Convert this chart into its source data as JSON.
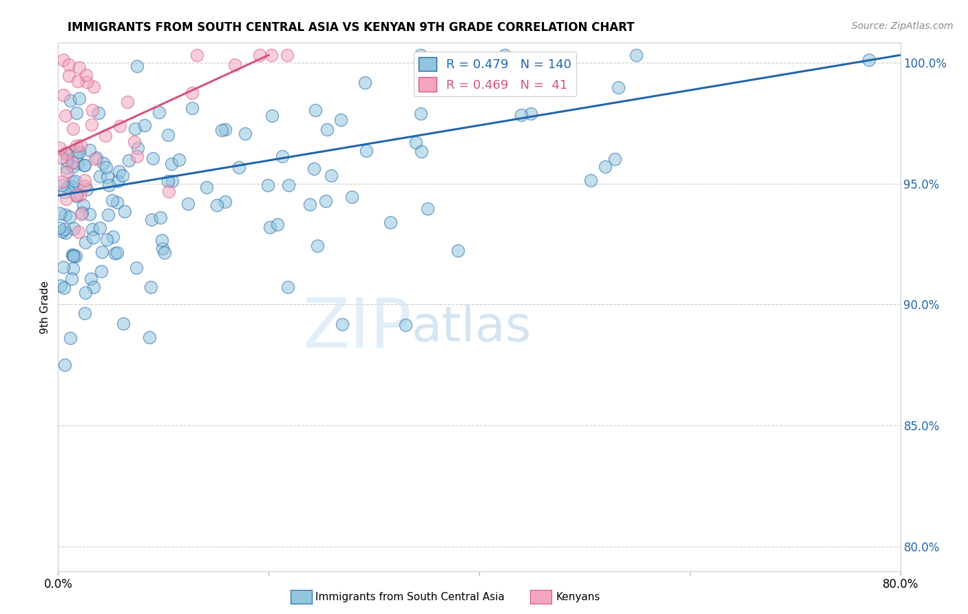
{
  "title": "IMMIGRANTS FROM SOUTH CENTRAL ASIA VS KENYAN 9TH GRADE CORRELATION CHART",
  "source": "Source: ZipAtlas.com",
  "xlabel": "",
  "ylabel": "9th Grade",
  "xlim": [
    0.0,
    0.8
  ],
  "ylim": [
    0.79,
    1.008
  ],
  "yticks": [
    0.8,
    0.85,
    0.9,
    0.95,
    1.0
  ],
  "ytick_labels": [
    "80.0%",
    "85.0%",
    "90.0%",
    "95.0%",
    "100.0%"
  ],
  "xticks": [
    0.0,
    0.2,
    0.4,
    0.6,
    0.8
  ],
  "xtick_labels": [
    "0.0%",
    "",
    "",
    "",
    "80.0%"
  ],
  "blue_R": 0.479,
  "blue_N": 140,
  "pink_R": 0.469,
  "pink_N": 41,
  "blue_color": "#92c5de",
  "pink_color": "#f4a6c0",
  "trendline_blue": "#2166ac",
  "trendline_pink": "#d6537a",
  "legend_label_blue": "Immigrants from South Central Asia",
  "legend_label_pink": "Kenyans",
  "watermark_zip": "ZIP",
  "watermark_atlas": "atlas",
  "background_color": "#ffffff",
  "grid_color": "#cccccc",
  "blue_trend_x0": 0.0,
  "blue_trend_y0": 0.945,
  "blue_trend_x1": 0.8,
  "blue_trend_y1": 1.003,
  "pink_trend_x0": 0.0,
  "pink_trend_y0": 0.963,
  "pink_trend_x1": 0.2,
  "pink_trend_y1": 1.003
}
